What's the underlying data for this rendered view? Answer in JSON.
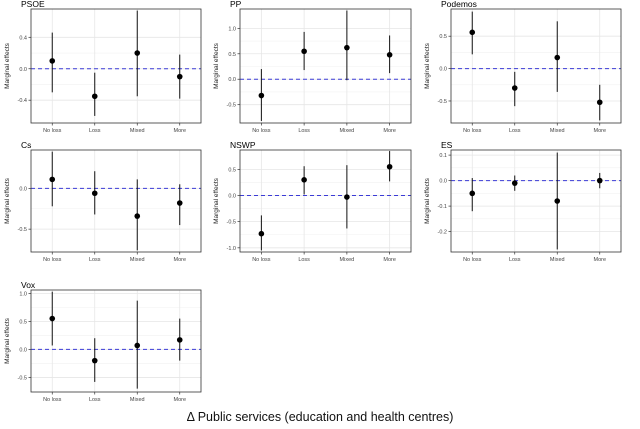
{
  "caption": "Δ Public services (education and health centres)",
  "chart_data": [
    {
      "type": "scatter",
      "title": "PSOE",
      "ylabel": "Marginal effects",
      "categories": [
        "No loss",
        "Loss",
        "Mixed",
        "More"
      ],
      "estimates": [
        0.1,
        -0.35,
        0.2,
        -0.1
      ],
      "lower": [
        -0.3,
        -0.6,
        -0.35,
        -0.38
      ],
      "upper": [
        0.46,
        -0.05,
        0.74,
        0.18
      ],
      "yticks": [
        -0.4,
        0.0,
        0.4
      ],
      "ytick_labels": [
        "-0.4",
        "0.0",
        "0.4"
      ],
      "ylim": [
        -0.69,
        0.76
      ],
      "reference_line": 0,
      "grid": true
    },
    {
      "type": "scatter",
      "title": "PP",
      "ylabel": "Marginal effects",
      "categories": [
        "No loss",
        "Loss",
        "Mixed",
        "More"
      ],
      "estimates": [
        -0.32,
        0.55,
        0.62,
        0.48
      ],
      "lower": [
        -0.82,
        0.18,
        -0.02,
        0.12
      ],
      "upper": [
        0.2,
        0.93,
        1.35,
        0.86
      ],
      "yticks": [
        -0.5,
        0.0,
        0.5,
        1.0
      ],
      "ytick_labels": [
        "-0.5",
        "0.0",
        "0.5",
        "1.0"
      ],
      "ylim": [
        -0.86,
        1.38
      ],
      "reference_line": 0,
      "grid": true
    },
    {
      "type": "scatter",
      "title": "Podemos",
      "ylabel": "Marginal effects",
      "categories": [
        "No loss",
        "Loss",
        "Mixed",
        "More"
      ],
      "estimates": [
        0.56,
        -0.3,
        0.17,
        -0.52
      ],
      "lower": [
        0.22,
        -0.58,
        -0.36,
        -0.8
      ],
      "upper": [
        0.88,
        -0.05,
        0.73,
        -0.25
      ],
      "yticks": [
        -0.5,
        0.0,
        0.5
      ],
      "ytick_labels": [
        "-0.5",
        "0.0",
        "0.5"
      ],
      "ylim": [
        -0.84,
        0.92
      ],
      "reference_line": 0,
      "grid": true
    },
    {
      "type": "scatter",
      "title": "Cs",
      "ylabel": "Marginal effects",
      "categories": [
        "No loss",
        "Loss",
        "Mixed",
        "More"
      ],
      "estimates": [
        0.11,
        -0.06,
        -0.34,
        -0.18
      ],
      "lower": [
        -0.22,
        -0.32,
        -0.76,
        -0.45
      ],
      "upper": [
        0.45,
        0.21,
        0.11,
        0.05
      ],
      "yticks": [
        -0.5,
        0.0
      ],
      "ytick_labels": [
        "-0.5",
        "0.0"
      ],
      "ylim": [
        -0.78,
        0.47
      ],
      "reference_line": 0,
      "grid": true
    },
    {
      "type": "scatter",
      "title": "NSWP",
      "ylabel": "Marginal effects",
      "categories": [
        "No loss",
        "Loss",
        "Mixed",
        "More"
      ],
      "estimates": [
        -0.73,
        0.3,
        -0.03,
        0.55
      ],
      "lower": [
        -1.05,
        0.02,
        -0.63,
        0.27
      ],
      "upper": [
        -0.38,
        0.56,
        0.58,
        0.85
      ],
      "yticks": [
        -1.0,
        -0.5,
        0.0,
        0.5
      ],
      "ytick_labels": [
        "-1.0",
        "-0.5",
        "0.0",
        "0.5"
      ],
      "ylim": [
        -1.08,
        0.87
      ],
      "reference_line": 0,
      "grid": true
    },
    {
      "type": "scatter",
      "title": "ES",
      "ylabel": "Marginal effects",
      "categories": [
        "No loss",
        "Loss",
        "Mixed",
        "More"
      ],
      "estimates": [
        -0.05,
        -0.01,
        -0.08,
        0.0
      ],
      "lower": [
        -0.12,
        -0.04,
        -0.27,
        -0.03
      ],
      "upper": [
        0.01,
        0.02,
        0.11,
        0.03
      ],
      "yticks": [
        -0.2,
        -0.1,
        0.0,
        0.1
      ],
      "ytick_labels": [
        "-0.2",
        "-0.1",
        "0.0",
        "0.1"
      ],
      "ylim": [
        -0.28,
        0.12
      ],
      "reference_line": 0,
      "grid": true
    },
    {
      "type": "scatter",
      "title": "Vox",
      "ylabel": "Marginal effects",
      "categories": [
        "No loss",
        "Loss",
        "Mixed",
        "More"
      ],
      "estimates": [
        0.55,
        -0.2,
        0.07,
        0.17
      ],
      "lower": [
        0.07,
        -0.58,
        -0.7,
        -0.2
      ],
      "upper": [
        1.03,
        0.2,
        0.87,
        0.55
      ],
      "yticks": [
        -0.5,
        0.0,
        0.5,
        1.0
      ],
      "ytick_labels": [
        "-0.5",
        "0.0",
        "0.5",
        "1.0"
      ],
      "ylim": [
        -0.76,
        1.06
      ],
      "reference_line": 0,
      "grid": true
    }
  ]
}
